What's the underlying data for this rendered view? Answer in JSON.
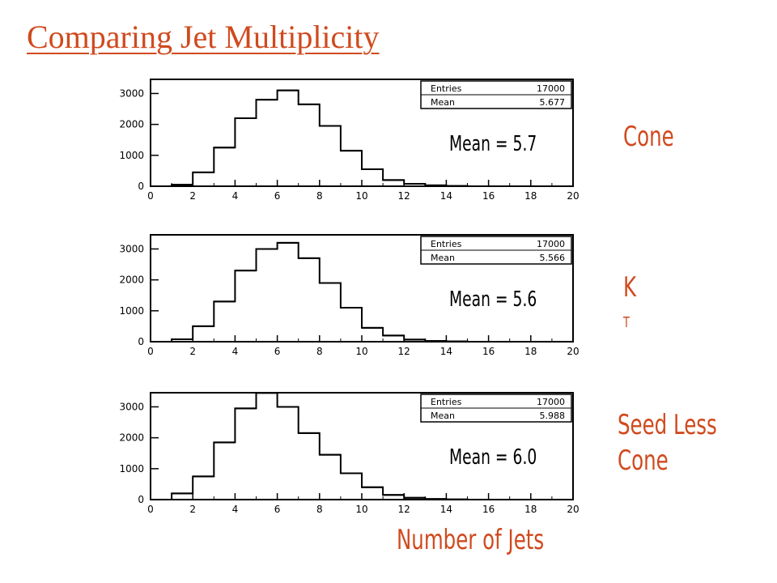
{
  "title": "Comparing Jet Multiplicity",
  "colors": {
    "accent": "#d04a1e",
    "line": "#000000"
  },
  "chart_data": [
    {
      "type": "bar",
      "stat_box": {
        "entries_label": "Entries",
        "entries_value": "17000",
        "mean_label": "Mean",
        "mean_value": "5.677"
      },
      "mean_annotation": "Mean = 5.7",
      "side_label_lines": [
        "Cone"
      ],
      "xlim": [
        0,
        20
      ],
      "ylim": [
        0,
        3300
      ],
      "xticks": [
        "0",
        "2",
        "4",
        "6",
        "8",
        "10",
        "12",
        "14",
        "16",
        "18",
        "20"
      ],
      "yticks": [
        "0",
        "1000",
        "2000",
        "3000"
      ],
      "bins_edges": [
        1,
        2,
        3,
        4,
        5,
        6,
        7,
        8,
        9,
        10,
        11,
        12,
        13,
        14,
        15
      ],
      "values": [
        50,
        450,
        1250,
        2200,
        2800,
        3100,
        2650,
        1950,
        1150,
        550,
        200,
        80,
        30,
        10
      ]
    },
    {
      "type": "bar",
      "stat_box": {
        "entries_label": "Entries",
        "entries_value": "17000",
        "mean_label": "Mean",
        "mean_value": "5.566"
      },
      "mean_annotation": "Mean = 5.6",
      "side_label_lines": [
        "K",
        "T"
      ],
      "xlim": [
        0,
        20
      ],
      "ylim": [
        0,
        3300
      ],
      "xticks": [
        "0",
        "2",
        "4",
        "6",
        "8",
        "10",
        "12",
        "14",
        "16",
        "18",
        "20"
      ],
      "yticks": [
        "0",
        "1000",
        "2000",
        "3000"
      ],
      "bins_edges": [
        1,
        2,
        3,
        4,
        5,
        6,
        7,
        8,
        9,
        10,
        11,
        12,
        13,
        14,
        15
      ],
      "values": [
        80,
        500,
        1300,
        2300,
        3000,
        3200,
        2700,
        1900,
        1100,
        450,
        200,
        70,
        25,
        10
      ]
    },
    {
      "type": "bar",
      "stat_box": {
        "entries_label": "Entries",
        "entries_value": "17000",
        "mean_label": "Mean",
        "mean_value": "5.988"
      },
      "mean_annotation": "Mean = 6.0",
      "side_label_lines": [
        "Seed Less",
        "Cone"
      ],
      "xlim": [
        0,
        20
      ],
      "ylim": [
        0,
        3300
      ],
      "xticks": [
        "0",
        "2",
        "4",
        "6",
        "8",
        "10",
        "12",
        "14",
        "16",
        "18",
        "20"
      ],
      "yticks": [
        "0",
        "1000",
        "2000",
        "3000"
      ],
      "bins_edges": [
        1,
        2,
        3,
        4,
        5,
        6,
        7,
        8,
        9,
        10,
        11,
        12,
        13,
        14,
        15
      ],
      "values": [
        200,
        750,
        1850,
        2950,
        3450,
        3000,
        2150,
        1450,
        850,
        400,
        150,
        60,
        20,
        5
      ]
    }
  ],
  "xcaption": "Number of Jets"
}
